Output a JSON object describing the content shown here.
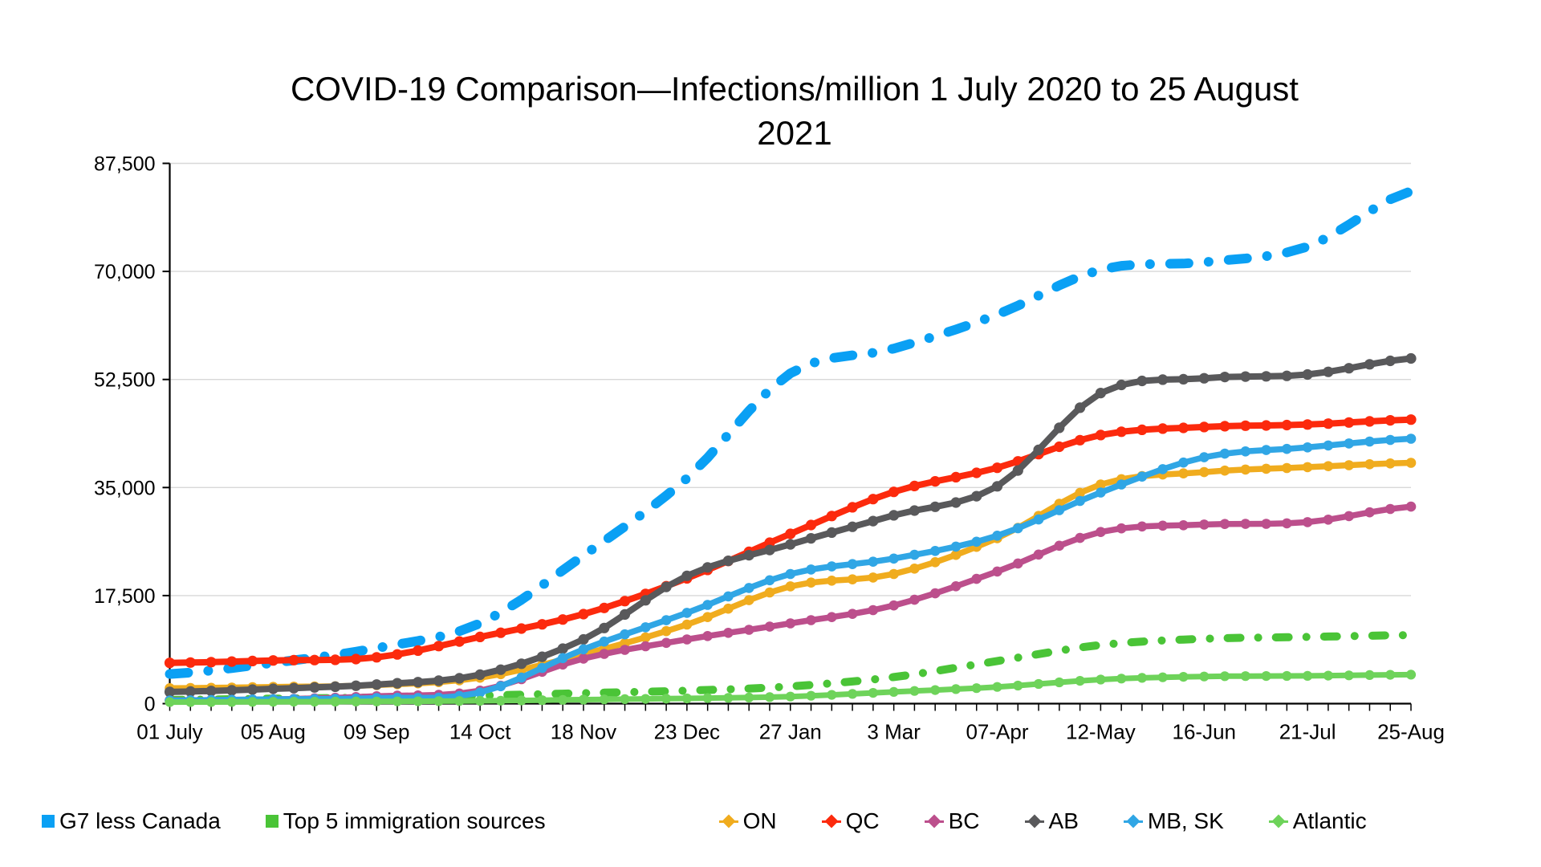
{
  "page": {
    "background": "#FFFFFF"
  },
  "chart_data": {
    "type": "line",
    "title": "COVID-19 Comparison—Infections/million 1 July 2020 to 25 August 2021",
    "title_lines": [
      "COVID-19 Comparison—Infections/million 1 July 2020 to 25 August",
      "2021"
    ],
    "x_tick_labels": [
      "01 July",
      "05 Aug",
      "09 Sep",
      "14 Oct",
      "18 Nov",
      "23 Dec",
      "27 Jan",
      "3 Mar",
      "07-Apr",
      "12-May",
      "16-Jun",
      "21-Jul",
      "25-Aug"
    ],
    "points_per_interval": 5,
    "y_axis": {
      "min": 0,
      "max": 87500,
      "step": 17500,
      "tick_labels": [
        "0",
        "17,500",
        "35,000",
        "52,500",
        "70,000",
        "87,500"
      ],
      "tick_values": [
        0,
        17500,
        35000,
        52500,
        70000,
        87500
      ]
    },
    "grid_on": true,
    "grid_color": "#D8D8D8",
    "axis_color": "#000000",
    "legend_position": "bottom",
    "series": [
      {
        "name": "G7 less Canada",
        "color": "#0AA0F4",
        "style": "dashed",
        "line_width": 12,
        "legend_marker": "square",
        "values": [
          4800,
          6600,
          9000,
          13000,
          24000,
          36500,
          53500,
          57500,
          63000,
          70300,
          71500,
          74000,
          83000
        ]
      },
      {
        "name": "Top 5 immigration sources",
        "color": "#4AC437",
        "style": "dashed",
        "line_width": 10,
        "legend_marker": "square",
        "values": [
          600,
          800,
          1000,
          1300,
          1700,
          2100,
          2800,
          4300,
          6900,
          9500,
          10500,
          10800,
          11100
        ]
      },
      {
        "name": "ON",
        "color": "#F0AC1E",
        "style": "solid",
        "line_width": 7.5,
        "legend_marker": "diamond",
        "values": [
          2500,
          2700,
          3000,
          4200,
          8000,
          12800,
          19000,
          21000,
          26800,
          35500,
          37500,
          38300,
          39000
        ]
      },
      {
        "name": "QC",
        "color": "#FC2A0D",
        "style": "solid",
        "line_width": 8,
        "legend_marker": "diamond",
        "values": [
          6600,
          7000,
          7500,
          10800,
          14500,
          20300,
          27500,
          34300,
          38200,
          43500,
          44800,
          45200,
          46000
        ]
      },
      {
        "name": "BC",
        "color": "#BC4F8C",
        "style": "solid",
        "line_width": 7.5,
        "legend_marker": "diamond",
        "values": [
          550,
          700,
          1200,
          2100,
          7300,
          10400,
          13000,
          15900,
          21400,
          27800,
          29000,
          29400,
          31900
        ]
      },
      {
        "name": "AB",
        "color": "#59595B",
        "style": "solid",
        "line_width": 8,
        "legend_marker": "diamond",
        "values": [
          1900,
          2400,
          3100,
          4700,
          10400,
          20700,
          25800,
          30500,
          35200,
          50300,
          52700,
          53300,
          55900
        ]
      },
      {
        "name": "MB, SK",
        "color": "#30A6E5",
        "style": "solid",
        "line_width": 7.5,
        "legend_marker": "diamond",
        "values": [
          500,
          700,
          900,
          1800,
          8800,
          14700,
          21000,
          23500,
          27200,
          34200,
          39900,
          41500,
          42900
        ]
      },
      {
        "name": "Atlantic",
        "color": "#6ED35A",
        "style": "solid",
        "line_width": 7,
        "legend_marker": "diamond",
        "values": [
          250,
          300,
          350,
          450,
          650,
          850,
          1150,
          1900,
          2700,
          3900,
          4400,
          4500,
          4700
        ]
      }
    ]
  }
}
